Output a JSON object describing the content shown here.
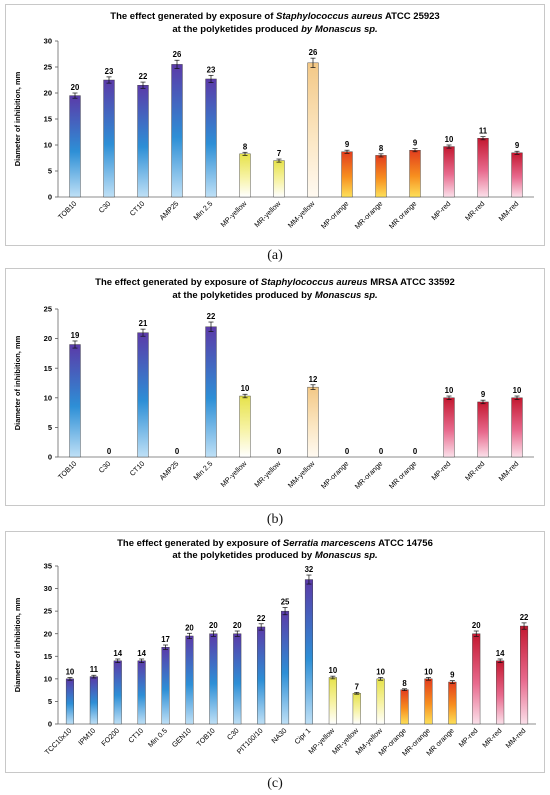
{
  "charts": [
    {
      "caption": "(a)",
      "title_parts": [
        {
          "text": "The effect generated by exposure of ",
          "italic": false
        },
        {
          "text": "Staphylococcus aureus",
          "italic": true
        },
        {
          "text": " ATCC 25923",
          "italic": false
        }
      ],
      "subtitle_parts": [
        {
          "text": "at the polyketides produced ",
          "italic": false
        },
        {
          "text": "by Monascus sp.",
          "italic": true
        }
      ]
    },
    {
      "caption": "(b)",
      "title_parts": [
        {
          "text": "The effect generated by exposure of ",
          "italic": false
        },
        {
          "text": "Staphylococcus aureus",
          "italic": true
        },
        {
          "text": " MRSA  ATCC 33592",
          "italic": false
        }
      ],
      "subtitle_parts": [
        {
          "text": "at the polyketides produced by ",
          "italic": false
        },
        {
          "text": "Monascus sp.",
          "italic": true
        }
      ]
    },
    {
      "caption": "(c)",
      "title_parts": [
        {
          "text": "The effect generated by exposure of ",
          "italic": false
        },
        {
          "text": "Serratia marcescens",
          "italic": true
        },
        {
          "text": " ATCC 14756",
          "italic": false
        }
      ],
      "subtitle_parts": [
        {
          "text": "at the polyketides produced by ",
          "italic": false
        },
        {
          "text": "Monascus sp.",
          "italic": true
        }
      ]
    }
  ],
  "palettes": {
    "blue": [
      "#5b3aa8",
      "#2d8fd6",
      "#bfe0f6"
    ],
    "yellow": [
      "#e6e24a",
      "#f7f3a6",
      "#ffffff"
    ],
    "cream": [
      "#f3c886",
      "#fbe6c2",
      "#fffaf2"
    ],
    "orange": [
      "#e23d1e",
      "#f78f1f",
      "#fde05a"
    ],
    "red": [
      "#c31830",
      "#e86a8e",
      "#fbe0ea"
    ]
  },
  "chart_data": [
    {
      "type": "bar",
      "title": "The effect generated by exposure of Staphylococcus aureus ATCC 25923 at the polyketides produced by Monascus sp.",
      "ylabel": "Diameter of inhibition, mm",
      "ylim": [
        0,
        30
      ],
      "yticks": [
        0,
        5,
        10,
        15,
        20,
        25,
        30
      ],
      "grid": false,
      "categories": [
        "TOB10",
        "C30",
        "CT10",
        "AMP25",
        "Min 2.5",
        "MP-yellow",
        "MR-yellow",
        "MM-yellow",
        "MP-orange",
        "MR-orange",
        "MR orange",
        "MP-red",
        "MR-red",
        "MM-red"
      ],
      "values": [
        19.5,
        22.5,
        21.5,
        25.5,
        22.7,
        8.3,
        7,
        25.8,
        8.7,
        8,
        9,
        9.7,
        11.3,
        8.5
      ],
      "data_labels": [
        "20",
        "23",
        "22",
        "26",
        "23",
        "8",
        "7",
        "26",
        "9",
        "8",
        "9",
        "10",
        "11",
        "9"
      ],
      "errors": [
        0.5,
        0.6,
        0.6,
        0.8,
        0.7,
        0.3,
        0.3,
        0.9,
        0.3,
        0.3,
        0.3,
        0.3,
        0.3,
        0.3
      ],
      "colors": [
        "blue",
        "blue",
        "blue",
        "blue",
        "blue",
        "yellow",
        "yellow",
        "cream",
        "orange",
        "orange",
        "orange",
        "red",
        "red",
        "red"
      ]
    },
    {
      "type": "bar",
      "title": "The effect generated by exposure of Staphylococcus aureus MRSA ATCC 33592 at the polyketides produced by Monascus sp.",
      "ylabel": "Diameter of inhibition, mm",
      "ylim": [
        0,
        25
      ],
      "yticks": [
        0,
        5,
        10,
        15,
        20,
        25
      ],
      "grid": false,
      "categories": [
        "TOB10",
        "C30",
        "CT10",
        "AMP25",
        "Min 2.5",
        "MP-yellow",
        "MR-yellow",
        "MM-yellow",
        "MP-orange",
        "MR-orange",
        "MR orange",
        "MP-red",
        "MR-red",
        "MM-red"
      ],
      "values": [
        19,
        0,
        21,
        0,
        22,
        10.3,
        0,
        11.8,
        0,
        0,
        0,
        10,
        9.3,
        10
      ],
      "data_labels": [
        "19",
        "0",
        "21",
        "0",
        "22",
        "10",
        "0",
        "12",
        "0",
        "0",
        "0",
        "10",
        "9",
        "10"
      ],
      "errors": [
        0.6,
        0,
        0.6,
        0,
        0.8,
        0.3,
        0,
        0.4,
        0,
        0,
        0,
        0.3,
        0.3,
        0.3
      ],
      "colors": [
        "blue",
        "blue",
        "blue",
        "blue",
        "blue",
        "yellow",
        "yellow",
        "cream",
        "orange",
        "orange",
        "orange",
        "red",
        "red",
        "red"
      ]
    },
    {
      "type": "bar",
      "title": "The effect generated by exposure of Serratia marcescens ATCC 14756 at the polyketides produced by Monascus sp.",
      "ylabel": "Diameter of inhibition, mm",
      "ylim": [
        0,
        35
      ],
      "yticks": [
        0,
        5,
        10,
        15,
        20,
        25,
        30,
        35
      ],
      "grid": false,
      "categories": [
        "TCC10x10",
        "IPM10",
        "FO200",
        "CT10",
        "Min 0.5",
        "GEN10",
        "TOB10",
        "C30",
        "PIT100/10",
        "NA30",
        "Cipr 1",
        "MP-yellow",
        "MR-yellow",
        "MM-yellow",
        "MP-orange",
        "MR-orange",
        "MR orange",
        "MP-red",
        "MR-red",
        "MM-red"
      ],
      "values": [
        10,
        10.5,
        14,
        14,
        17,
        19.5,
        20,
        20,
        21.5,
        25,
        32,
        10.3,
        6.8,
        10,
        7.6,
        10,
        9.3,
        20,
        14,
        21.7
      ],
      "data_labels": [
        "10",
        "11",
        "14",
        "14",
        "17",
        "20",
        "20",
        "20",
        "22",
        "25",
        "32",
        "10",
        "7",
        "10",
        "8",
        "10",
        "9",
        "20",
        "14",
        "22"
      ],
      "errors": [
        0.3,
        0.3,
        0.4,
        0.4,
        0.5,
        0.6,
        0.6,
        0.6,
        0.7,
        0.8,
        1.0,
        0.3,
        0.2,
        0.3,
        0.2,
        0.3,
        0.3,
        0.6,
        0.4,
        0.7
      ],
      "colors": [
        "blue",
        "blue",
        "blue",
        "blue",
        "blue",
        "blue",
        "blue",
        "blue",
        "blue",
        "blue",
        "blue",
        "yellow",
        "yellow",
        "yellow",
        "orange",
        "orange",
        "orange",
        "red",
        "red",
        "red"
      ]
    }
  ]
}
